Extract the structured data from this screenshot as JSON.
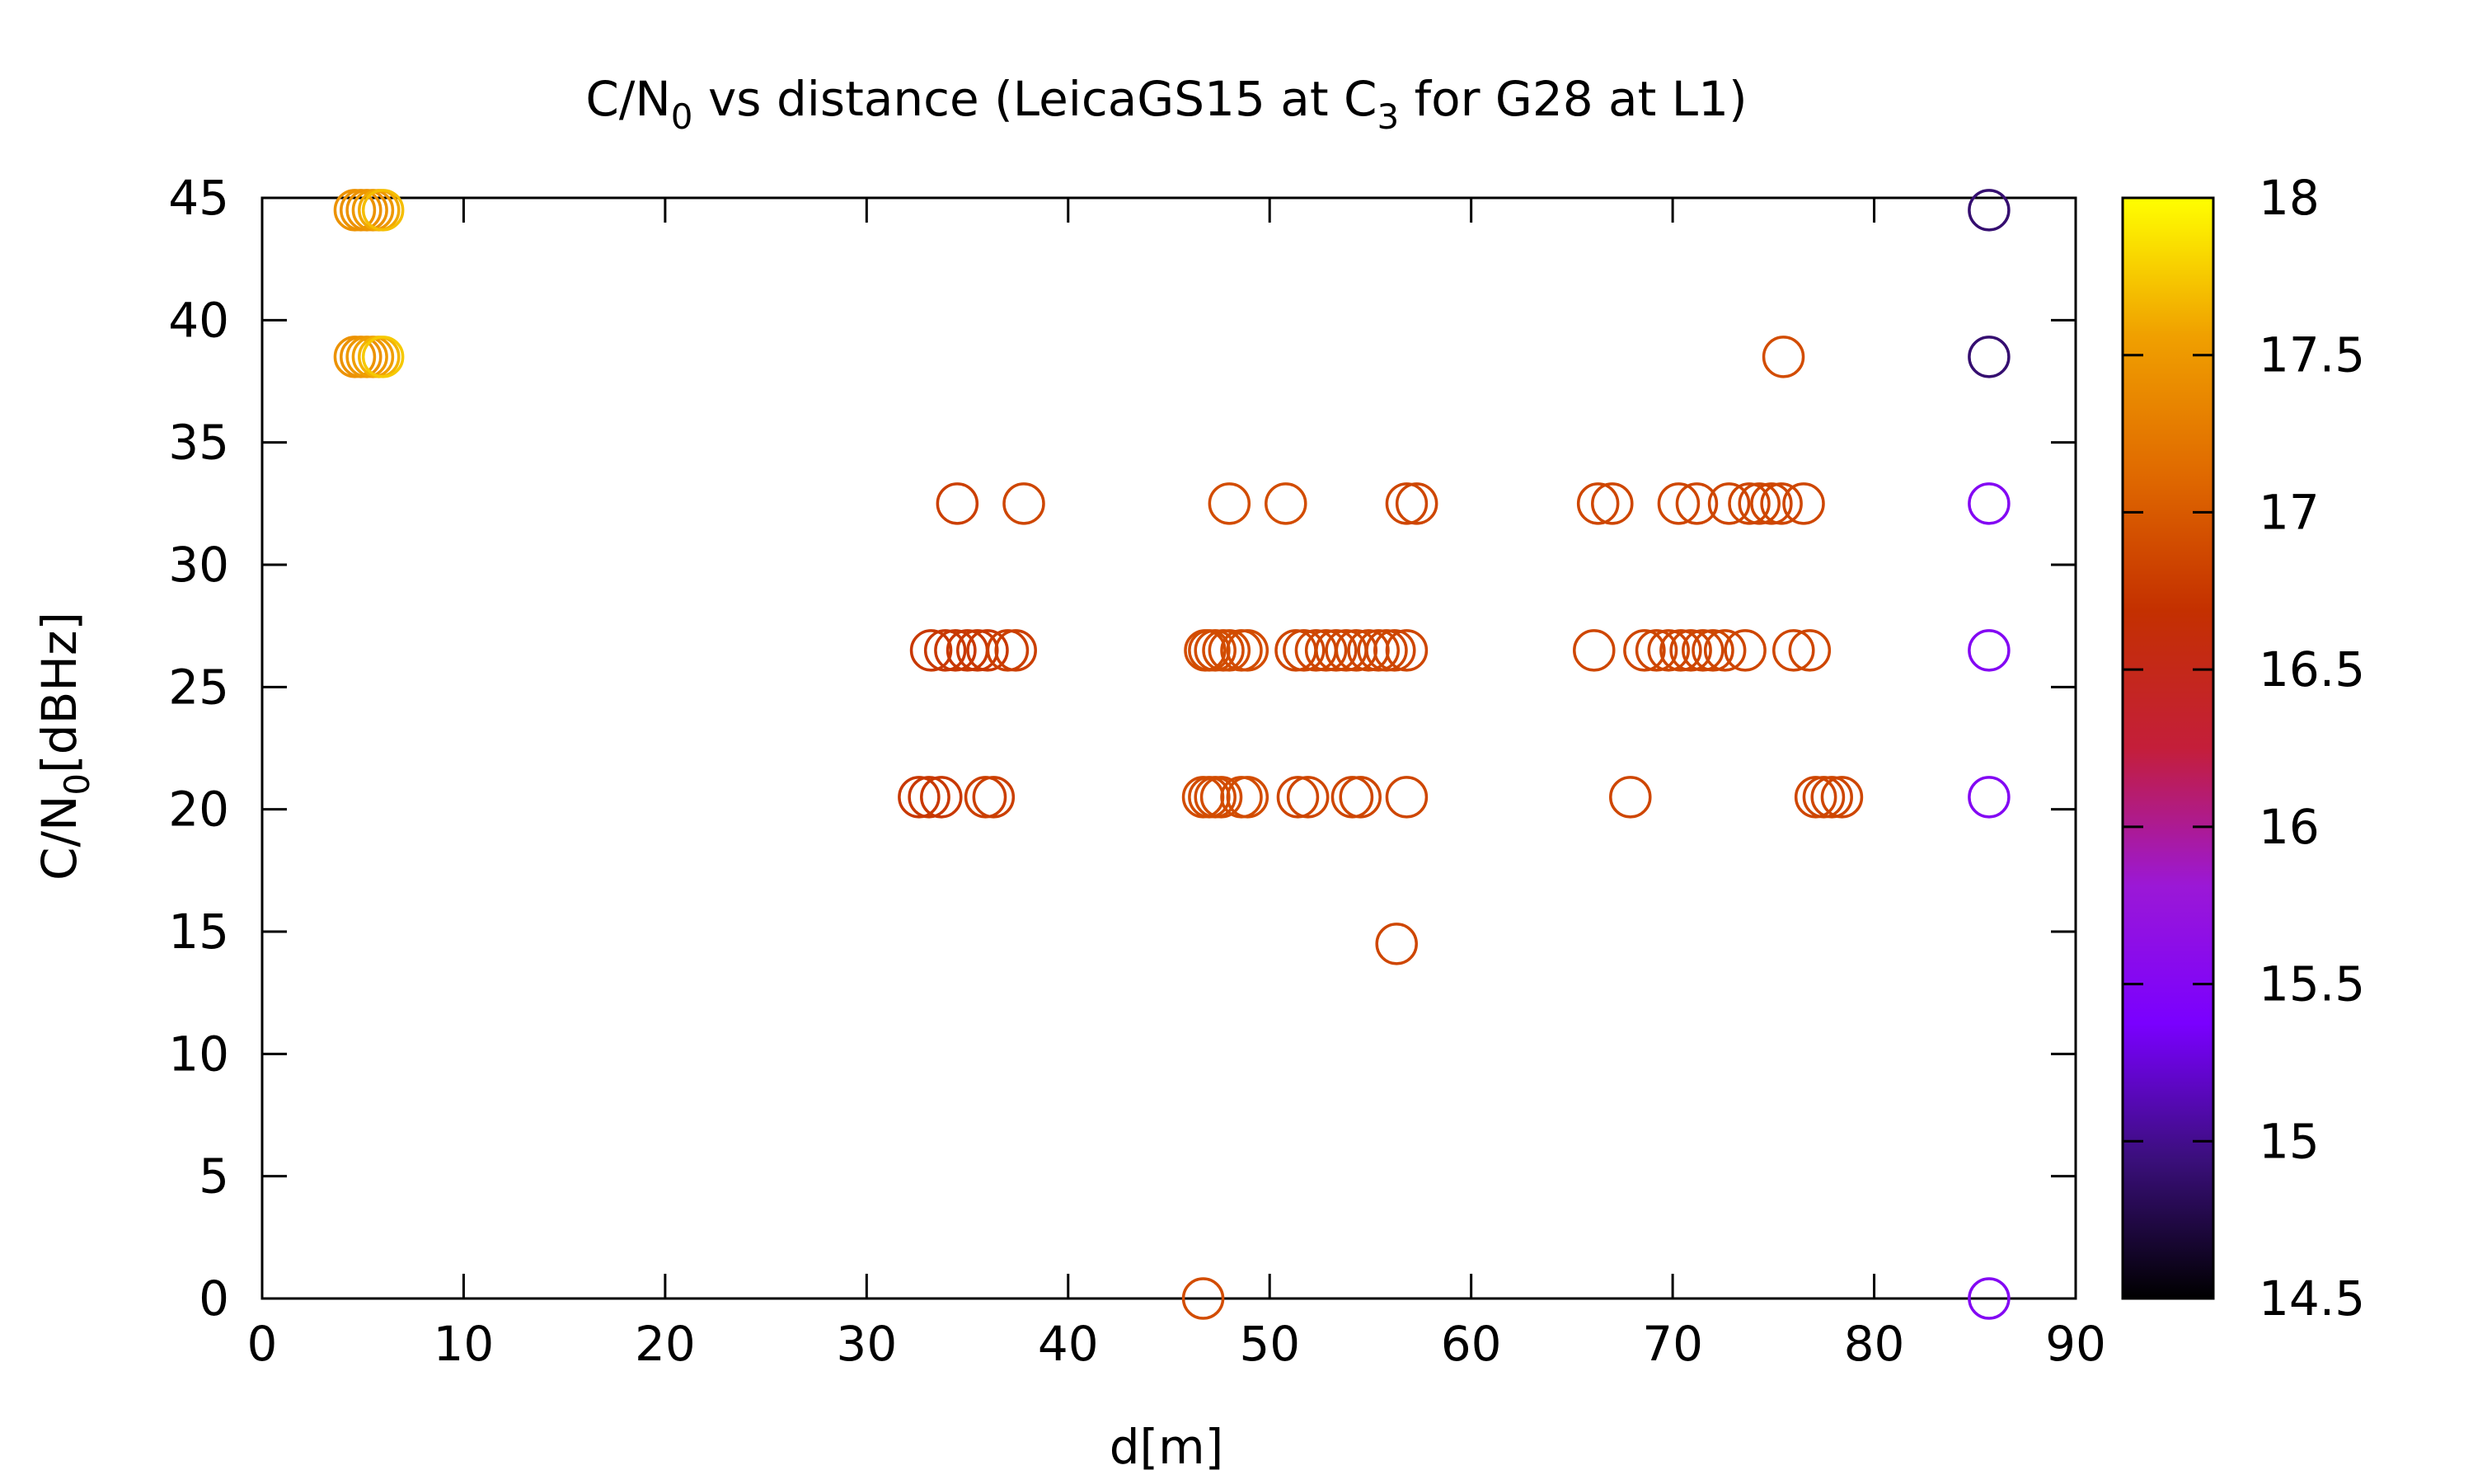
{
  "chart_data": {
    "type": "scatter",
    "title": {
      "main": "C/N",
      "sub": "0",
      "rest": " vs distance (LeicaGS15 at C",
      "sub2": "3",
      "rest2": " for G28 at L1)"
    },
    "xlabel": "d[m]",
    "ylabel": {
      "main": "C/N",
      "sub": "0",
      "rest": "[dBHz]"
    },
    "xlim": [
      0,
      90
    ],
    "ylim": [
      0,
      45
    ],
    "x_ticks": [
      0,
      10,
      20,
      30,
      40,
      50,
      60,
      70,
      80,
      90
    ],
    "y_ticks": [
      0,
      5,
      10,
      15,
      20,
      25,
      30,
      35,
      40,
      45
    ],
    "colorbar": {
      "range": [
        14.5,
        18
      ],
      "ticks": [
        "14.5",
        "15",
        "15.5",
        "16",
        "16.5",
        "17",
        "17.5",
        "18"
      ],
      "palette": [
        "#000000",
        "#3a0f7a",
        "#7a00ff",
        "#9b18d6",
        "#c41e3a",
        "#c43000",
        "#e06a00",
        "#f0a000",
        "#ffff00"
      ]
    },
    "series": [
      {
        "marker": "open-circle",
        "points": [
          [
            4.6,
            44.5,
            17.45
          ],
          [
            4.9,
            44.5,
            17.45
          ],
          [
            5.2,
            44.5,
            17.45
          ],
          [
            5.5,
            44.5,
            17.5
          ],
          [
            5.8,
            44.5,
            17.6
          ],
          [
            6.0,
            44.5,
            17.7
          ],
          [
            4.6,
            38.5,
            17.45
          ],
          [
            4.9,
            38.5,
            17.45
          ],
          [
            5.2,
            38.5,
            17.5
          ],
          [
            5.5,
            38.5,
            17.55
          ],
          [
            5.8,
            38.5,
            17.65
          ],
          [
            6.0,
            38.5,
            17.75
          ],
          [
            75.5,
            38.5,
            16.9
          ],
          [
            34.5,
            32.5,
            16.8
          ],
          [
            37.8,
            32.5,
            16.85
          ],
          [
            48.0,
            32.5,
            16.9
          ],
          [
            50.8,
            32.5,
            16.9
          ],
          [
            56.8,
            32.5,
            16.85
          ],
          [
            57.3,
            32.5,
            16.85
          ],
          [
            66.3,
            32.5,
            16.85
          ],
          [
            67.0,
            32.5,
            16.85
          ],
          [
            70.3,
            32.5,
            16.85
          ],
          [
            71.2,
            32.5,
            16.85
          ],
          [
            72.8,
            32.5,
            16.85
          ],
          [
            73.8,
            32.5,
            16.85
          ],
          [
            74.3,
            32.5,
            16.85
          ],
          [
            74.9,
            32.5,
            16.85
          ],
          [
            75.4,
            32.5,
            16.85
          ],
          [
            76.5,
            32.5,
            16.85
          ],
          [
            33.2,
            26.5,
            16.75
          ],
          [
            33.9,
            26.5,
            16.75
          ],
          [
            34.4,
            26.5,
            16.75
          ],
          [
            35.0,
            26.5,
            16.75
          ],
          [
            35.5,
            26.5,
            16.75
          ],
          [
            36.0,
            26.5,
            16.75
          ],
          [
            37.0,
            26.5,
            16.8
          ],
          [
            37.4,
            26.5,
            16.8
          ],
          [
            46.8,
            26.5,
            16.9
          ],
          [
            47.0,
            26.5,
            16.9
          ],
          [
            47.3,
            26.5,
            16.9
          ],
          [
            47.7,
            26.5,
            16.9
          ],
          [
            48.0,
            26.5,
            16.9
          ],
          [
            48.6,
            26.5,
            16.9
          ],
          [
            48.9,
            26.5,
            16.9
          ],
          [
            51.3,
            26.5,
            16.85
          ],
          [
            51.7,
            26.5,
            16.85
          ],
          [
            52.3,
            26.5,
            16.85
          ],
          [
            52.8,
            26.5,
            16.85
          ],
          [
            53.3,
            26.5,
            16.85
          ],
          [
            53.8,
            26.5,
            16.85
          ],
          [
            54.3,
            26.5,
            16.85
          ],
          [
            54.9,
            26.5,
            16.85
          ],
          [
            55.4,
            26.5,
            16.85
          ],
          [
            55.8,
            26.5,
            16.85
          ],
          [
            56.2,
            26.5,
            16.85
          ],
          [
            56.8,
            26.5,
            16.85
          ],
          [
            66.1,
            26.5,
            16.85
          ],
          [
            68.6,
            26.5,
            16.85
          ],
          [
            69.2,
            26.5,
            16.85
          ],
          [
            69.8,
            26.5,
            16.85
          ],
          [
            70.4,
            26.5,
            16.85
          ],
          [
            70.9,
            26.5,
            16.85
          ],
          [
            71.5,
            26.5,
            16.85
          ],
          [
            72.0,
            26.5,
            16.85
          ],
          [
            72.6,
            26.5,
            16.85
          ],
          [
            73.6,
            26.5,
            16.85
          ],
          [
            76.0,
            26.5,
            16.85
          ],
          [
            76.8,
            26.5,
            16.85
          ],
          [
            32.6,
            20.5,
            16.75
          ],
          [
            33.1,
            20.5,
            16.75
          ],
          [
            33.7,
            20.5,
            16.75
          ],
          [
            35.9,
            20.5,
            16.8
          ],
          [
            36.3,
            20.5,
            16.8
          ],
          [
            46.7,
            20.5,
            16.9
          ],
          [
            47.0,
            20.5,
            16.9
          ],
          [
            47.3,
            20.5,
            16.9
          ],
          [
            47.6,
            20.5,
            16.9
          ],
          [
            48.6,
            20.5,
            16.9
          ],
          [
            48.9,
            20.5,
            16.9
          ],
          [
            51.4,
            20.5,
            16.85
          ],
          [
            51.9,
            20.5,
            16.85
          ],
          [
            54.1,
            20.5,
            16.85
          ],
          [
            54.5,
            20.5,
            16.85
          ],
          [
            56.8,
            20.5,
            16.85
          ],
          [
            67.9,
            20.5,
            16.85
          ],
          [
            77.1,
            20.5,
            16.85
          ],
          [
            77.5,
            20.5,
            16.85
          ],
          [
            77.9,
            20.5,
            16.85
          ],
          [
            78.4,
            20.5,
            16.85
          ],
          [
            56.3,
            14.5,
            16.85
          ],
          [
            46.7,
            0.0,
            16.9
          ],
          [
            85.7,
            44.5,
            14.9
          ],
          [
            85.7,
            38.5,
            14.9
          ],
          [
            85.7,
            32.5,
            15.5
          ],
          [
            85.7,
            26.5,
            15.5
          ],
          [
            85.7,
            20.5,
            15.5
          ],
          [
            85.7,
            0.0,
            15.5
          ]
        ]
      }
    ]
  }
}
